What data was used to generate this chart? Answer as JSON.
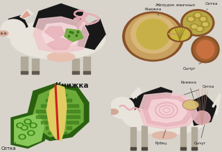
{
  "bg_color": "#d8d4cc",
  "labels": {
    "stomach_title": "Желудок жвачных",
    "knijka": "Книжка",
    "setka": "Сетка",
    "sycug": "Сычуг",
    "rubec": "Рубец",
    "knijka_title": "Книжка",
    "setka2": "Сетка"
  },
  "colors": {
    "stomach_pink": "#e8b0b8",
    "stomach_pink2": "#f0c8cc",
    "stomach_pink3": "#f8dde0",
    "stomach_green": "#6aaa38",
    "stomach_dark_green": "#3a7818",
    "stomach_mid_green": "#88c858",
    "stomach_yellow": "#c8b840",
    "stomach_tan": "#c8a060",
    "stomach_light_tan": "#d8b878",
    "stomach_olive": "#a89030",
    "stomach_khaki": "#b8a848",
    "organ_brown": "#a06030",
    "organ_dark": "#885028",
    "yellow_channel": "#e0cc60",
    "red_stripe": "#cc2020",
    "cow_white": "#e8e4dc",
    "cow_black": "#181818",
    "cow_gray": "#b0a898",
    "cow_skin": "#c8b898",
    "panel1_bg": "#ccc8c0",
    "panel2_bg": "#e0dcd4",
    "panel3_bg": "#d8e4cc",
    "panel4_bg": "#d4d0c8",
    "text_dark": "#1a1a1a",
    "line_color": "#444444"
  },
  "figsize": [
    3.2,
    2.2
  ],
  "dpi": 100
}
